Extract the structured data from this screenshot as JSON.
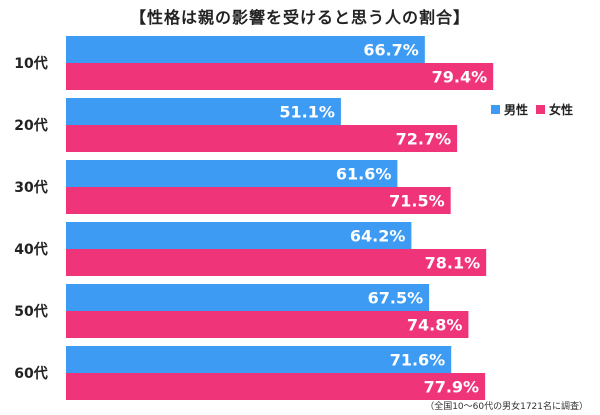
{
  "chart_data": {
    "type": "bar",
    "orientation": "horizontal",
    "title": "【性格は親の影響を受けると思う人の割合】",
    "categories": [
      "10代",
      "20代",
      "30代",
      "40代",
      "50代",
      "60代"
    ],
    "series": [
      {
        "name": "男性",
        "color": "#3d9bf3",
        "values": [
          66.7,
          51.1,
          61.6,
          64.2,
          67.5,
          71.6
        ],
        "labels": [
          "66.7%",
          "51.1%",
          "61.6%",
          "64.2%",
          "67.5%",
          "71.6%"
        ]
      },
      {
        "name": "女性",
        "color": "#f0347a",
        "values": [
          79.4,
          72.7,
          71.5,
          78.1,
          74.8,
          77.9
        ],
        "labels": [
          "79.4%",
          "72.7%",
          "71.5%",
          "78.1%",
          "74.8%",
          "77.9%"
        ]
      }
    ],
    "xlim": [
      0,
      100
    ],
    "grid": false,
    "legend": "top-right",
    "footnote": "（全国10～60代の男女1721名に調査）"
  }
}
